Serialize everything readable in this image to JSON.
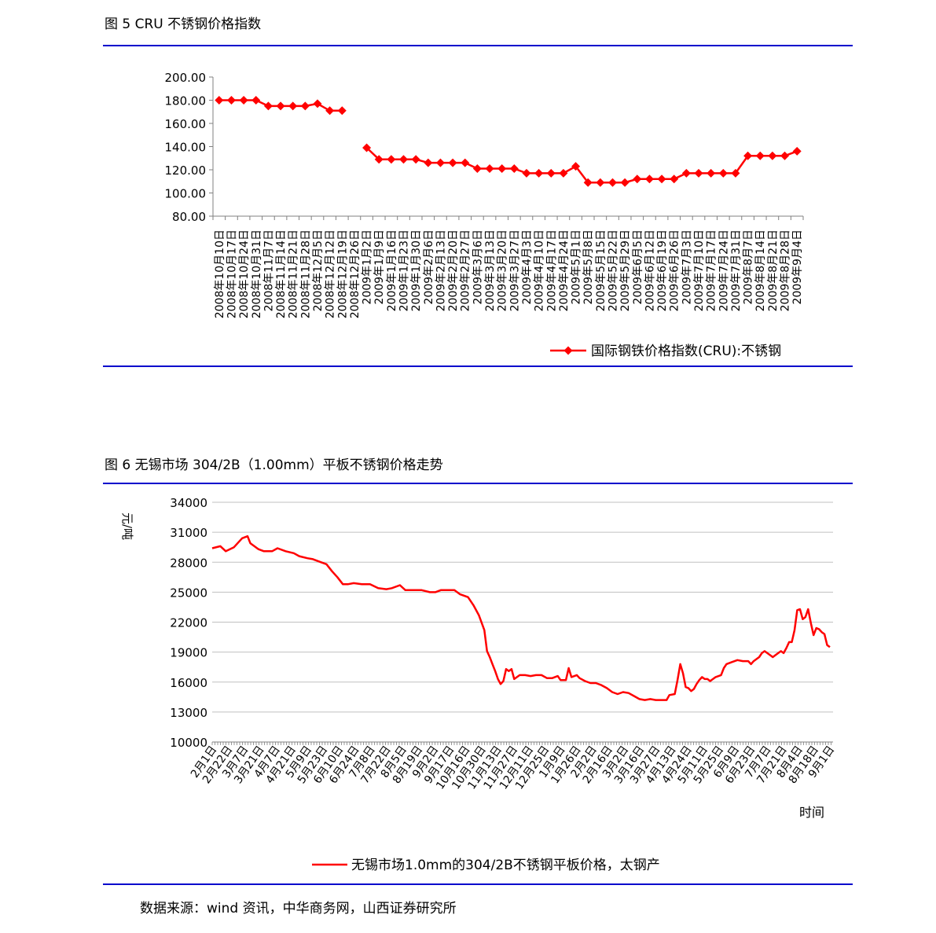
{
  "figure1": {
    "title": "图 5 CRU 不锈钢价格指数",
    "legend": "国际钢铁价格指数(CRU):不锈钢",
    "color": "#ff0000"
  },
  "figure2": {
    "title": "图 6 无锡市场 304/2B（1.00mm）平板不锈钢价格走势",
    "ylabel": "元/吨",
    "xlabel": "时间",
    "legend": "无锡市场1.0mm的304/2B不锈钢平板价格，太钢产",
    "color": "#ff0000"
  },
  "source": "数据来源：wind 资讯，中华商务网，山西证券研究所",
  "chart_data": [
    {
      "type": "line",
      "title": "图 5 CRU 不锈钢价格指数",
      "ylim": [
        80,
        200
      ],
      "yticks": [
        "200.00",
        "180.00",
        "160.00",
        "140.00",
        "120.00",
        "100.00",
        "80.00"
      ],
      "x": [
        "2008年10月10日",
        "2008年10月17日",
        "2008年10月24日",
        "2008年10月31日",
        "2008年11月7日",
        "2008年11月14日",
        "2008年11月21日",
        "2008年11月28日",
        "2008年12月5日",
        "2008年12月12日",
        "2008年12月19日",
        "2008年12月26日",
        "2009年1月2日",
        "2009年1月9日",
        "2009年1月16日",
        "2009年1月23日",
        "2009年1月30日",
        "2009年2月6日",
        "2009年2月13日",
        "2009年2月20日",
        "2009年2月27日",
        "2009年3月6日",
        "2009年3月13日",
        "2009年3月20日",
        "2009年3月27日",
        "2009年4月3日",
        "2009年4月10日",
        "2009年4月17日",
        "2009年4月24日",
        "2009年5月1日",
        "2009年5月8日",
        "2009年5月15日",
        "2009年5月22日",
        "2009年5月29日",
        "2009年6月5日",
        "2009年6月12日",
        "2009年6月19日",
        "2009年6月26日",
        "2009年7月3日",
        "2009年7月10日",
        "2009年7月17日",
        "2009年7月24日",
        "2009年7月31日",
        "2009年8月7日",
        "2009年8月14日",
        "2009年8月21日",
        "2009年8月28日",
        "2009年9月4日"
      ],
      "series": [
        {
          "name": "国际钢铁价格指数(CRU):不锈钢",
          "values": [
            180,
            180,
            180,
            180,
            175,
            175,
            175,
            175,
            177,
            171,
            171,
            null,
            139,
            129,
            129,
            129,
            129,
            126,
            126,
            126,
            126,
            121,
            121,
            121,
            121,
            117,
            117,
            117,
            117,
            123,
            109,
            109,
            109,
            109,
            112,
            112,
            112,
            112,
            117,
            117,
            117,
            117,
            117,
            132,
            132,
            132,
            132,
            136
          ]
        }
      ],
      "grid": false,
      "legend_position": "bottom-right"
    },
    {
      "type": "line",
      "title": "图 6 无锡市场 304/2B（1.00mm）平板不锈钢价格走势",
      "xlabel": "时间",
      "ylabel": "元/吨",
      "ylim": [
        10000,
        34000
      ],
      "yticks": [
        "34000",
        "31000",
        "28000",
        "25000",
        "22000",
        "19000",
        "16000",
        "13000",
        "10000"
      ],
      "xticks": [
        "2月1日",
        "2月22日",
        "3月7日",
        "3月21日",
        "4月7日",
        "4月21日",
        "5月9日",
        "5月23日",
        "6月10日",
        "6月24日",
        "7月8日",
        "7月22日",
        "8月5日",
        "8月19日",
        "9月2日",
        "9月17日",
        "10月16日",
        "10月30日",
        "11月13日",
        "11月27日",
        "12月11日",
        "12月25日",
        "1月9日",
        "1月26日",
        "2月2日",
        "2月16日",
        "3月2日",
        "3月16日",
        "3月27日",
        "4月13日",
        "4月24日",
        "5月11日",
        "5月25日",
        "6月9日",
        "6月23日",
        "7月7日",
        "7月21日",
        "8月4日",
        "8月18日",
        "9月1日"
      ],
      "series": [
        {
          "name": "无锡市场1.0mm的304/2B不锈钢平板价格，太钢产",
          "points": [
            [
              0,
              29400
            ],
            [
              3,
              29600
            ],
            [
              5,
              29100
            ],
            [
              8,
              29500
            ],
            [
              11,
              30400
            ],
            [
              13,
              30600
            ],
            [
              14,
              29900
            ],
            [
              17,
              29300
            ],
            [
              19,
              29100
            ],
            [
              22,
              29100
            ],
            [
              24,
              29400
            ],
            [
              27,
              29100
            ],
            [
              30,
              28900
            ],
            [
              32,
              28600
            ],
            [
              35,
              28400
            ],
            [
              37,
              28300
            ],
            [
              40,
              28000
            ],
            [
              42,
              27800
            ],
            [
              44,
              27100
            ],
            [
              46,
              26500
            ],
            [
              48,
              25800
            ],
            [
              50,
              25800
            ],
            [
              52,
              25900
            ],
            [
              55,
              25800
            ],
            [
              58,
              25800
            ],
            [
              61,
              25400
            ],
            [
              64,
              25300
            ],
            [
              66,
              25400
            ],
            [
              69,
              25700
            ],
            [
              71,
              25200
            ],
            [
              74,
              25200
            ],
            [
              77,
              25200
            ],
            [
              80,
              25000
            ],
            [
              82,
              25000
            ],
            [
              84,
              25200
            ],
            [
              87,
              25200
            ],
            [
              89,
              25200
            ],
            [
              91,
              24800
            ],
            [
              94,
              24500
            ],
            [
              96,
              23700
            ],
            [
              98,
              22700
            ],
            [
              100,
              21200
            ],
            [
              101,
              19100
            ],
            [
              102,
              18500
            ],
            [
              103,
              17800
            ],
            [
              104,
              17100
            ],
            [
              105,
              16300
            ],
            [
              106,
              15800
            ],
            [
              107,
              16100
            ],
            [
              108,
              17300
            ],
            [
              109,
              17100
            ],
            [
              110,
              17300
            ],
            [
              111,
              16300
            ],
            [
              113,
              16700
            ],
            [
              115,
              16700
            ],
            [
              117,
              16600
            ],
            [
              119,
              16700
            ],
            [
              121,
              16700
            ],
            [
              123,
              16400
            ],
            [
              125,
              16400
            ],
            [
              127,
              16600
            ],
            [
              128,
              16200
            ],
            [
              130,
              16200
            ],
            [
              131,
              17400
            ],
            [
              132,
              16500
            ],
            [
              134,
              16700
            ],
            [
              135,
              16400
            ],
            [
              137,
              16100
            ],
            [
              139,
              15900
            ],
            [
              141,
              15900
            ],
            [
              143,
              15700
            ],
            [
              145,
              15400
            ],
            [
              147,
              15000
            ],
            [
              149,
              14800
            ],
            [
              151,
              15000
            ],
            [
              153,
              14900
            ],
            [
              155,
              14600
            ],
            [
              157,
              14300
            ],
            [
              159,
              14200
            ],
            [
              161,
              14300
            ],
            [
              163,
              14200
            ],
            [
              165,
              14200
            ],
            [
              167,
              14200
            ],
            [
              168,
              14700
            ],
            [
              170,
              14800
            ],
            [
              171,
              16200
            ],
            [
              172,
              17800
            ],
            [
              173,
              16900
            ],
            [
              174,
              15500
            ],
            [
              175,
              15400
            ],
            [
              176,
              15100
            ],
            [
              177,
              15300
            ],
            [
              178,
              15800
            ],
            [
              179,
              16200
            ],
            [
              180,
              16500
            ],
            [
              181,
              16300
            ],
            [
              182,
              16300
            ],
            [
              183,
              16100
            ],
            [
              185,
              16500
            ],
            [
              187,
              16700
            ],
            [
              188,
              17400
            ],
            [
              189,
              17800
            ],
            [
              191,
              18000
            ],
            [
              193,
              18200
            ],
            [
              195,
              18100
            ],
            [
              197,
              18100
            ],
            [
              198,
              17800
            ],
            [
              199,
              18100
            ],
            [
              201,
              18500
            ],
            [
              202,
              18900
            ],
            [
              203,
              19100
            ],
            [
              205,
              18700
            ],
            [
              206,
              18500
            ],
            [
              208,
              18900
            ],
            [
              209,
              19100
            ],
            [
              210,
              18900
            ],
            [
              211,
              19400
            ],
            [
              212,
              20000
            ],
            [
              213,
              20000
            ],
            [
              214,
              21200
            ],
            [
              215,
              23200
            ],
            [
              216,
              23300
            ],
            [
              217,
              22300
            ],
            [
              218,
              22500
            ],
            [
              219,
              23300
            ],
            [
              220,
              21900
            ],
            [
              221,
              20700
            ],
            [
              222,
              21400
            ],
            [
              223,
              21300
            ],
            [
              224,
              21000
            ],
            [
              225,
              20800
            ],
            [
              226,
              19700
            ],
            [
              227,
              19500
            ]
          ]
        }
      ],
      "grid": true,
      "legend_position": "bottom"
    }
  ]
}
